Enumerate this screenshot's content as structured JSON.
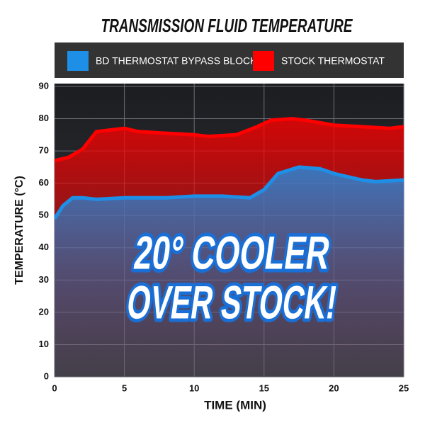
{
  "chart_data": {
    "type": "area",
    "title": "TRANSMISSION FLUID TEMPERATURE",
    "x_label": "TIME (MIN)",
    "y_label": "TEMPERATURE (°C)",
    "annotation": [
      "20° COOLER",
      "OVER STOCK!"
    ],
    "xlim": [
      0,
      25
    ],
    "ylim": [
      0,
      90
    ],
    "xticks": [
      0,
      5,
      10,
      15,
      20,
      25
    ],
    "yticks": [
      0,
      10,
      20,
      30,
      40,
      50,
      60,
      70,
      80,
      90
    ],
    "grid": true,
    "series": [
      {
        "name": "BD THERMOSTAT BYPASS BLOCK",
        "color": "#1e8fe6",
        "x": [
          0,
          0.6,
          1.3,
          2,
          3,
          5,
          8,
          10,
          12,
          14,
          15,
          16,
          17.5,
          19,
          20,
          22,
          23,
          25
        ],
        "values": [
          49,
          53,
          55.5,
          55.5,
          55,
          55.5,
          55.5,
          56,
          56,
          55.5,
          58,
          63,
          65,
          64.5,
          63,
          61,
          60.5,
          61
        ]
      },
      {
        "name": "STOCK THERMOSTAT",
        "color": "#ff0000",
        "x": [
          0,
          1,
          2,
          3,
          4,
          5,
          6,
          8,
          10,
          11,
          13,
          14.5,
          15.5,
          17,
          18,
          20,
          22,
          24,
          25
        ],
        "values": [
          67,
          68,
          70.5,
          76,
          76.5,
          77,
          76,
          75.5,
          75,
          74.5,
          75,
          77.5,
          79.5,
          80,
          79.5,
          78,
          77.5,
          77,
          77.5
        ]
      }
    ]
  }
}
